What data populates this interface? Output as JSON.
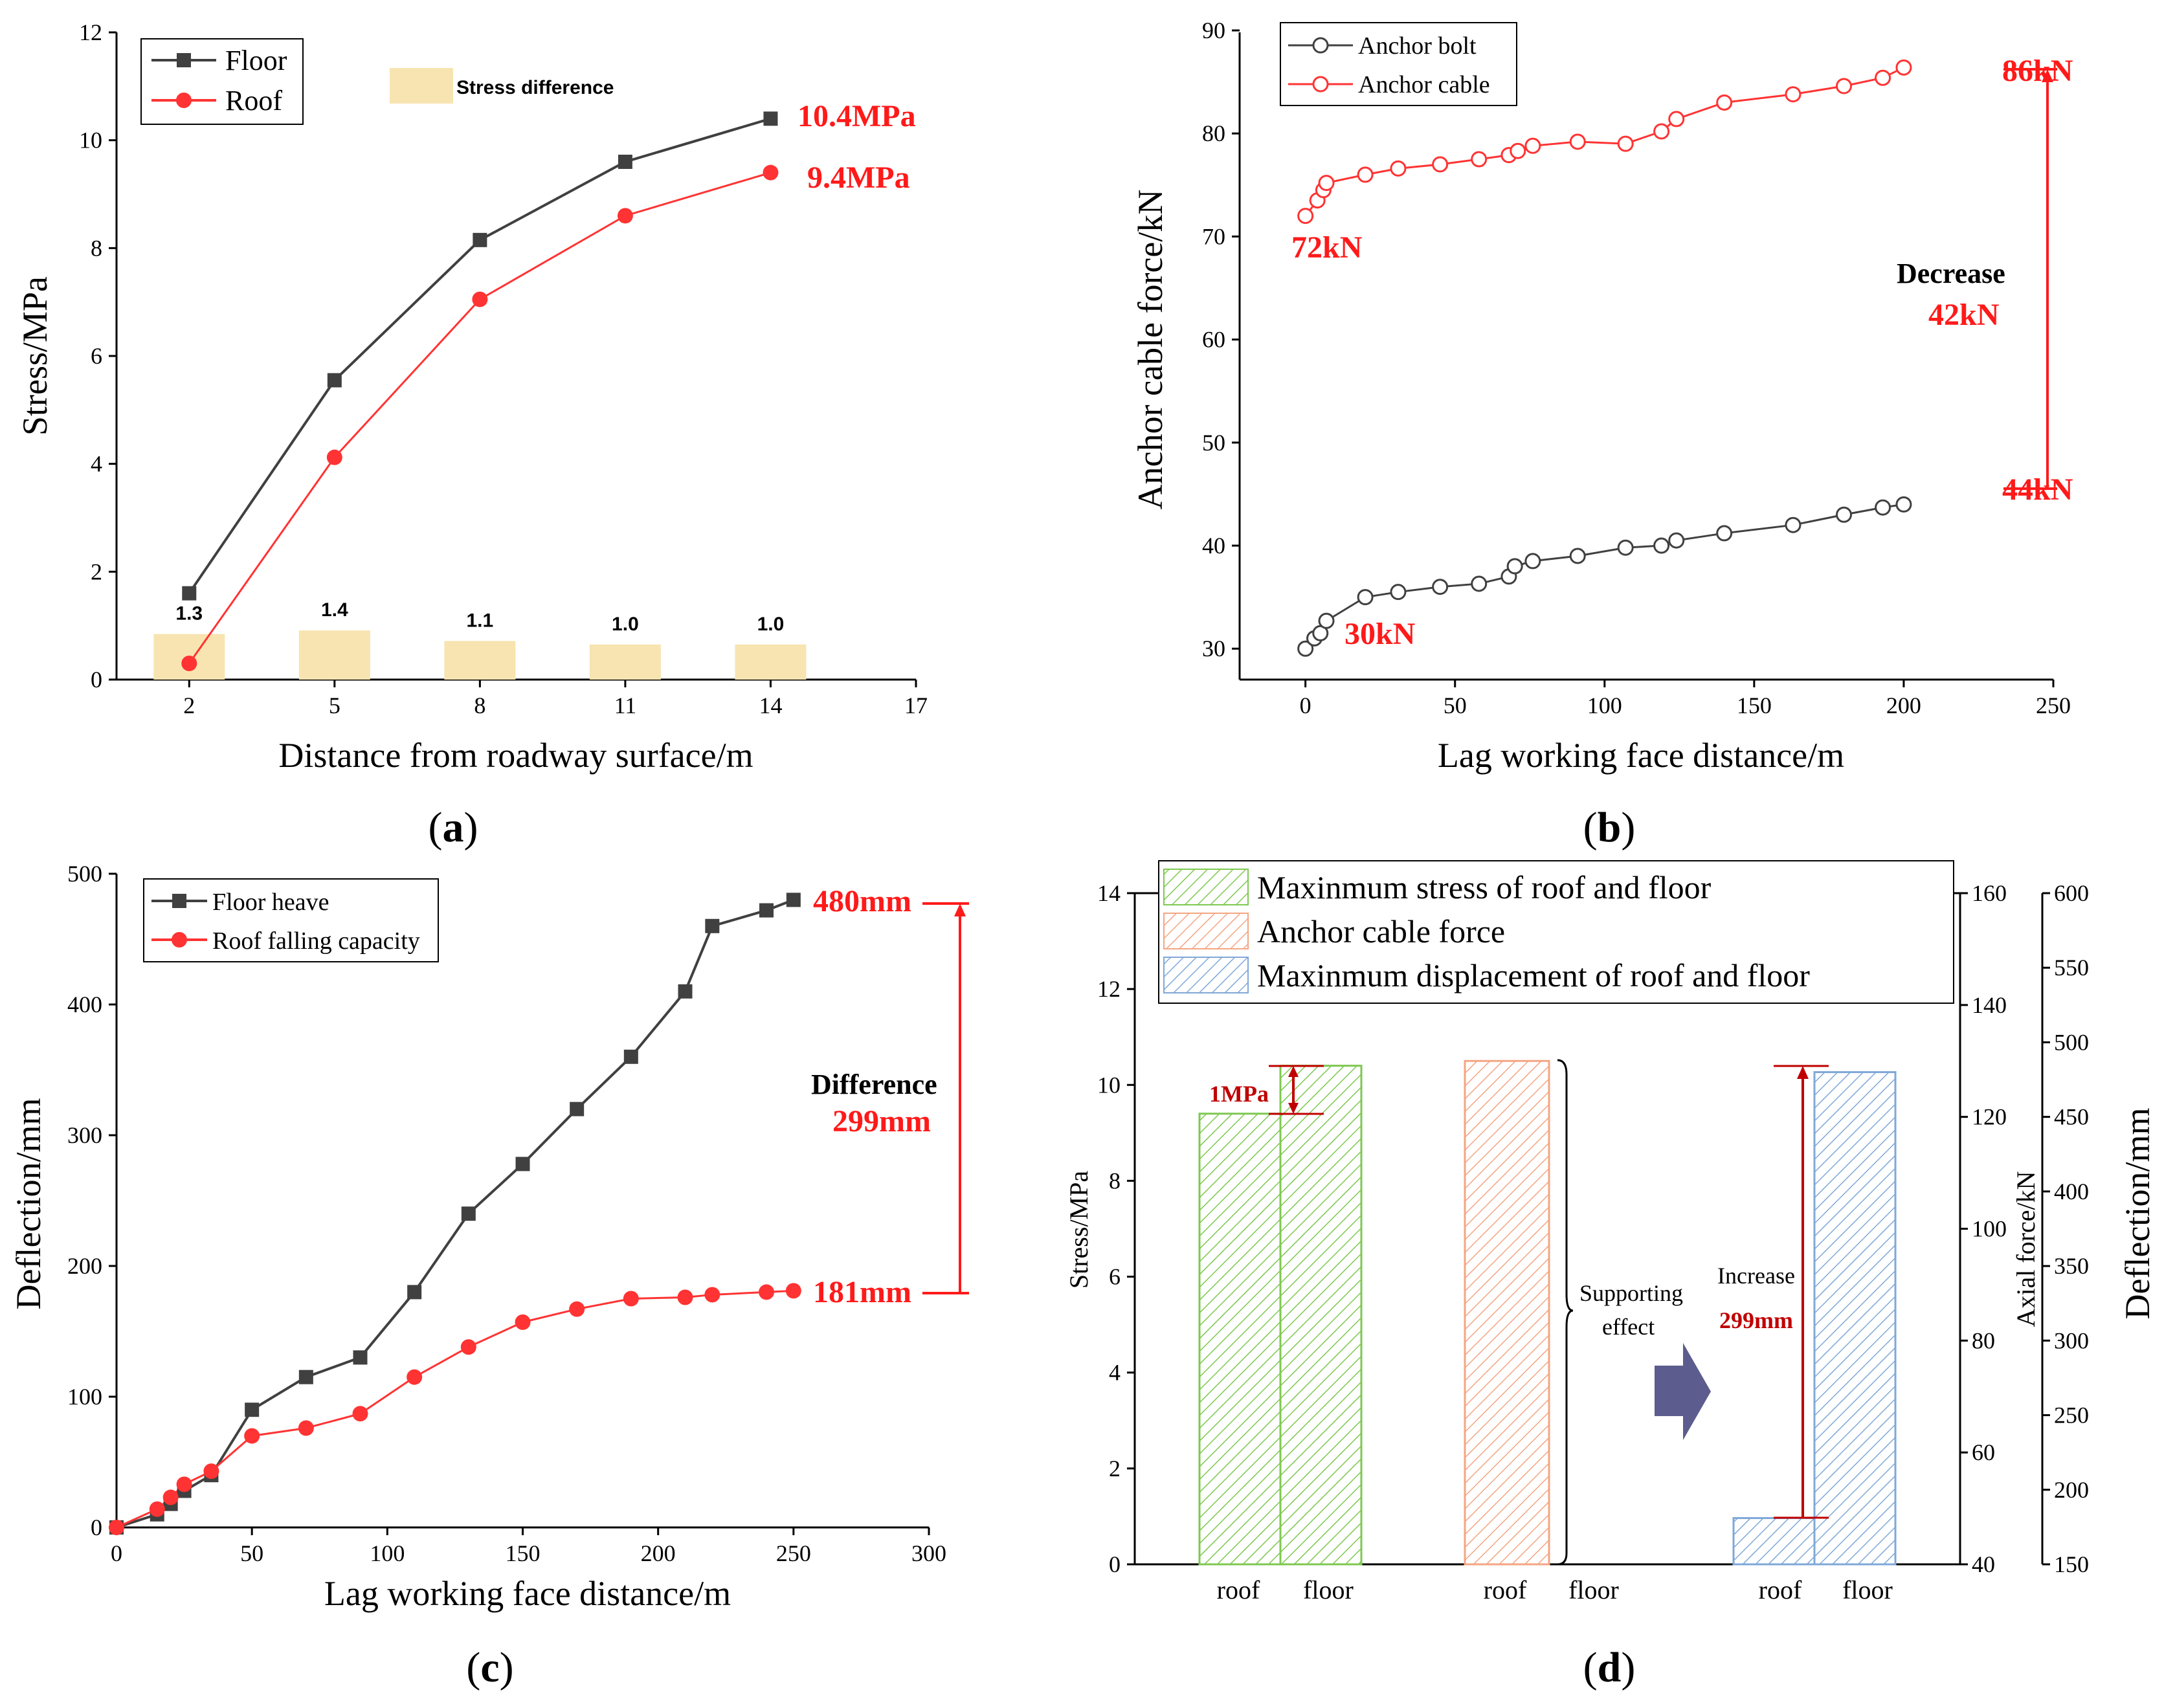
{
  "colors": {
    "black_series": "#404040",
    "red_series": "#ff3333",
    "stress_band": "#f8e4b0",
    "green": "#7ec850",
    "orange": "#f4a582",
    "blue": "#7fa8d8",
    "annotation_red": "#ff1a1a",
    "dark_red": "#c00000",
    "arrow_purple": "#5c5c8e"
  },
  "chart_data": [
    {
      "id": "a",
      "type": "line",
      "caption": "a",
      "xlabel": "Distance from roadway surface/m",
      "ylabel": "Stress/MPa",
      "xlim": [
        0.5,
        17
      ],
      "ylim": [
        0,
        12
      ],
      "xticks": [
        2,
        5,
        8,
        11,
        14,
        17
      ],
      "yticks": [
        0,
        2,
        4,
        6,
        8,
        10,
        12
      ],
      "legend": {
        "position": "top-left",
        "items": [
          "Floor",
          "Roof"
        ]
      },
      "stress_legend": "Stress difference",
      "series": [
        {
          "name": "Floor",
          "marker": "square",
          "x": [
            2,
            5,
            8,
            11,
            14
          ],
          "y": [
            1.6,
            5.55,
            8.15,
            9.6,
            10.4
          ]
        },
        {
          "name": "Roof",
          "marker": "circle",
          "x": [
            2,
            5,
            8,
            11,
            14
          ],
          "y": [
            0.3,
            4.12,
            7.05,
            8.6,
            9.4
          ]
        }
      ],
      "differences": {
        "x": [
          2,
          5,
          8,
          11,
          14
        ],
        "values": [
          1.3,
          1.4,
          1.1,
          1.0,
          1.0
        ],
        "labels": [
          "1.3",
          "1.4",
          "1.1",
          "1.0",
          "1.0"
        ]
      },
      "annotations": {
        "floor_end": "10.4MPa",
        "roof_end": "9.4MPa"
      }
    },
    {
      "id": "b",
      "type": "line",
      "caption": "b",
      "xlabel": "Lag working face distance/m",
      "ylabel": "Anchor cable force/kN",
      "xlim": [
        -22,
        250
      ],
      "ylim": [
        27,
        90
      ],
      "xticks": [
        0,
        50,
        100,
        150,
        200,
        250
      ],
      "yticks": [
        30,
        40,
        50,
        60,
        70,
        80,
        90
      ],
      "legend": {
        "position": "top-left",
        "items": [
          "Anchor bolt",
          "Anchor cable"
        ]
      },
      "series": [
        {
          "name": "Anchor bolt",
          "marker": "open-circle",
          "x": [
            0,
            3,
            5,
            7,
            20,
            31,
            45,
            58,
            68,
            70,
            76,
            91,
            107,
            119,
            124,
            140,
            163,
            180,
            193,
            200
          ],
          "y": [
            30,
            31,
            31.5,
            32.7,
            35,
            35.5,
            36,
            36.3,
            37,
            38,
            38.5,
            39,
            39.8,
            40,
            40.5,
            41.2,
            42,
            43,
            43.7,
            44
          ]
        },
        {
          "name": "Anchor cable",
          "marker": "open-circle",
          "x": [
            0,
            4,
            6,
            7,
            20,
            31,
            45,
            58,
            68,
            71,
            76,
            91,
            107,
            119,
            124,
            140,
            163,
            180,
            193,
            200
          ],
          "y": [
            72,
            73.5,
            74.5,
            75.2,
            76,
            76.6,
            77,
            77.5,
            77.9,
            78.3,
            78.8,
            79.2,
            79,
            80.2,
            81.4,
            83,
            83.8,
            84.6,
            85.4,
            86.4
          ]
        }
      ],
      "annotations": {
        "cable_start": "72kN",
        "bolt_start": "30kN",
        "cable_end": "86kN",
        "bolt_end": "44kN",
        "decrease_label": "Decrease",
        "decrease_value": "42kN"
      }
    },
    {
      "id": "c",
      "type": "line",
      "caption": "c",
      "xlabel": "Lag working face distance/m",
      "ylabel": "Deflection/mm",
      "xlim": [
        0,
        300
      ],
      "ylim": [
        0,
        500
      ],
      "xticks": [
        0,
        50,
        100,
        150,
        200,
        250,
        300
      ],
      "yticks": [
        0,
        100,
        200,
        300,
        400,
        500
      ],
      "legend": {
        "position": "top-left",
        "items": [
          "Floor heave",
          "Roof falling capacity"
        ]
      },
      "series": [
        {
          "name": "Floor heave",
          "marker": "square",
          "x": [
            0,
            15,
            20,
            25,
            35,
            50,
            70,
            90,
            110,
            130,
            150,
            170,
            190,
            210,
            220,
            240,
            250
          ],
          "y": [
            0,
            10,
            18,
            28,
            40,
            90,
            115,
            130,
            180,
            240,
            278,
            320,
            360,
            410,
            460,
            472,
            480
          ]
        },
        {
          "name": "Roof falling capacity",
          "marker": "circle",
          "x": [
            0,
            15,
            20,
            25,
            35,
            50,
            70,
            90,
            110,
            130,
            150,
            170,
            190,
            210,
            220,
            240,
            250
          ],
          "y": [
            0,
            14,
            23,
            33,
            43,
            70,
            76,
            87,
            115,
            138,
            157,
            167,
            175,
            176,
            178,
            180,
            181
          ]
        }
      ],
      "annotations": {
        "floor_end": "480mm",
        "roof_end": "181mm",
        "difference_label": "Difference",
        "difference_value": "299mm"
      }
    },
    {
      "id": "d",
      "type": "bar",
      "caption": "d",
      "ylabel_left": "Stress/MPa",
      "ylabel_mid": "Axial force/kN",
      "ylabel_right": "Deflection/mm",
      "ylim_left": [
        0,
        14
      ],
      "ylim_mid": [
        40,
        160
      ],
      "ylim_right": [
        150,
        600
      ],
      "yticks_left": [
        0,
        2,
        4,
        6,
        8,
        10,
        12,
        14
      ],
      "yticks_mid": [
        40,
        60,
        80,
        100,
        120,
        140,
        160
      ],
      "yticks_right": [
        150,
        200,
        250,
        300,
        350,
        400,
        450,
        500,
        550,
        600
      ],
      "legend": {
        "position": "top",
        "items": [
          "Maxinmum stress of roof and floor",
          "Anchor cable force",
          "Maxinmum displacement of roof and floor"
        ]
      },
      "categories": [
        "roof",
        "floor",
        "roof",
        "floor",
        "roof",
        "floor"
      ],
      "groups": [
        {
          "name": "Maxinmum stress of roof and floor",
          "axis": "left",
          "roof": 9.4,
          "floor": 10.4
        },
        {
          "name": "Anchor cable force",
          "axis": "mid",
          "value": 130
        },
        {
          "name": "Maxinmum displacement of roof and floor",
          "axis": "right",
          "roof": 181,
          "floor": 480
        }
      ],
      "annotations": {
        "stress_diff": "1MPa",
        "support_1": "Supporting",
        "support_2": "effect",
        "increase_label": "Increase",
        "increase_value": "299mm"
      }
    }
  ]
}
